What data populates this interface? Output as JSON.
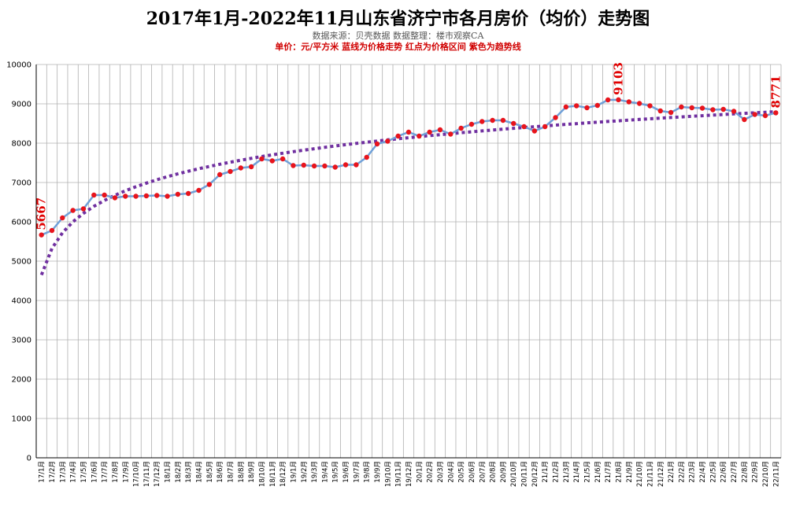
{
  "title": "2017年1月-2022年11月山东省济宁市各月房价（均价）走势图",
  "subtitle": "数据来源：贝壳数据  数据整理：楼市观察CA",
  "legend_note": "单价：元/平方米  蓝线为价格走势     红点为价格区间       紫色为趋势线",
  "colors": {
    "line": "#6fa0d8",
    "point": "#e8141c",
    "trend": "#7030a0",
    "grid": "#b0b0b0"
  },
  "chart_data": {
    "type": "line",
    "ylim": [
      0,
      10000
    ],
    "yticks": [
      0,
      1000,
      2000,
      3000,
      4000,
      5000,
      6000,
      7000,
      8000,
      9000,
      10000
    ],
    "grid": true,
    "categories": [
      "17/1月",
      "17/2月",
      "17/3月",
      "17/4月",
      "17/5月",
      "17/6月",
      "17/7月",
      "17/8月",
      "17/9月",
      "17/10月",
      "17/11月",
      "17/12月",
      "18/1月",
      "18/2月",
      "18/3月",
      "18/4月",
      "18/5月",
      "18/6月",
      "18/7月",
      "18/8月",
      "18/9月",
      "18/10月",
      "18/11月",
      "18/12月",
      "19/1月",
      "19/2月",
      "19/3月",
      "19/4月",
      "19/5月",
      "19/6月",
      "19/7月",
      "19/8月",
      "19/9月",
      "19/10月",
      "19/11月",
      "19/12月",
      "20/1月",
      "20/2月",
      "20/3月",
      "20/4月",
      "20/5月",
      "20/6月",
      "20/7月",
      "20/8月",
      "20/9月",
      "20/10月",
      "20/11月",
      "20/12月",
      "21/1月",
      "21/2月",
      "21/3月",
      "21/4月",
      "21/5月",
      "21/6月",
      "21/7月",
      "21/8月",
      "21/9月",
      "21/10月",
      "21/11月",
      "21/12月",
      "22/1月",
      "22/2月",
      "22/3月",
      "22/4月",
      "22/5月",
      "22/6月",
      "22/7月",
      "22/8月",
      "22/9月",
      "22/10月",
      "22/11月"
    ],
    "series": [
      {
        "values": [
          5667,
          5780,
          6100,
          6290,
          6330,
          6680,
          6680,
          6610,
          6650,
          6650,
          6660,
          6670,
          6650,
          6700,
          6720,
          6800,
          6950,
          7200,
          7280,
          7370,
          7400,
          7600,
          7550,
          7600,
          7430,
          7440,
          7420,
          7420,
          7390,
          7450,
          7450,
          7640,
          7980,
          8050,
          8180,
          8280,
          8180,
          8280,
          8340,
          8230,
          8380,
          8480,
          8550,
          8580,
          8580,
          8500,
          8420,
          8310,
          8420,
          8650,
          8920,
          8950,
          8900,
          8960,
          9100,
          9103,
          9050,
          9010,
          8950,
          8820,
          8780,
          8920,
          8900,
          8890,
          8850,
          8860,
          8810,
          8600,
          8730,
          8700,
          8771
        ]
      }
    ],
    "trend": {
      "type": "log",
      "start": 4650,
      "end": 8800
    },
    "annotations": [
      {
        "index": 0,
        "text": "5667"
      },
      {
        "index": 55,
        "text": "9103"
      },
      {
        "index": 70,
        "text": "8771"
      }
    ]
  }
}
